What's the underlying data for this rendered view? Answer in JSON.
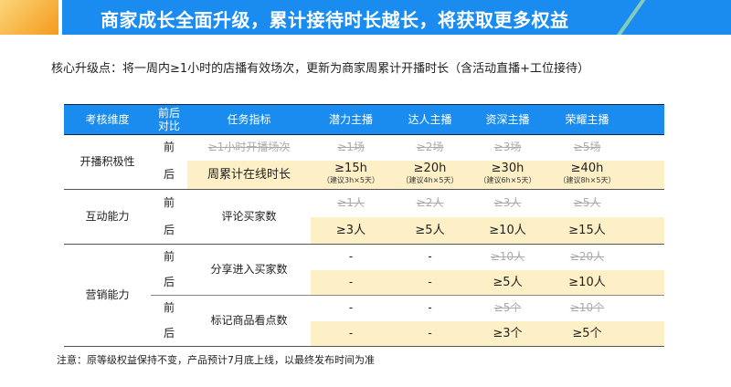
{
  "banner": {
    "title": "商家成长全面升级，累计接待时长越长，将获取更多权益"
  },
  "subtitle": "核心升级点：将一周内≥1小时的店播有效场次，更新为商家周累计开播时长（含活动直播+工位接待）",
  "table": {
    "headers": [
      "考核维度",
      "前后对比",
      "任务指标",
      "潜力主播",
      "达人主播",
      "资深主播",
      "荣耀主播"
    ],
    "before": "前",
    "after": "后",
    "groups": [
      {
        "dimension": "开播积极性",
        "before_task": "≥1小时开播场次",
        "after_task": "周累计在线时长",
        "before": [
          "≥1场",
          "≥2场",
          "≥3场",
          "≥5场"
        ],
        "after": [
          "≥15h",
          "≥20h",
          "≥30h",
          "≥40h"
        ],
        "after_notes": [
          "（建议3h×5天）",
          "（建议4h×5天）",
          "（建议6h×5天）",
          "（建议8h×5天）"
        ]
      },
      {
        "dimension": "互动能力",
        "task": "评论买家数",
        "before": [
          "≥1人",
          "≥2人",
          "≥3人",
          "≥5人"
        ],
        "after": [
          "≥3人",
          "≥5人",
          "≥10人",
          "≥15人"
        ]
      },
      {
        "dimension": "营销能力",
        "task": "分享进入买家数",
        "before": [
          "-",
          "-",
          "≥10人",
          "≥20人"
        ],
        "after": [
          "-",
          "-",
          "≥5人",
          "≥10人"
        ],
        "task2": "标记商品看点数",
        "before2": [
          "-",
          "-",
          "≥5个",
          "≥10个"
        ],
        "after2": [
          "-",
          "-",
          "≥3个",
          "≥5个"
        ]
      }
    ]
  },
  "note": "注意：原等级权益保持不变，产品预计7月底上线，以最终发布时间为准",
  "colors": {
    "header_blue": "#1a8cf0",
    "highlight": "#fdefc6",
    "accent_orange": "#f59a1b"
  }
}
